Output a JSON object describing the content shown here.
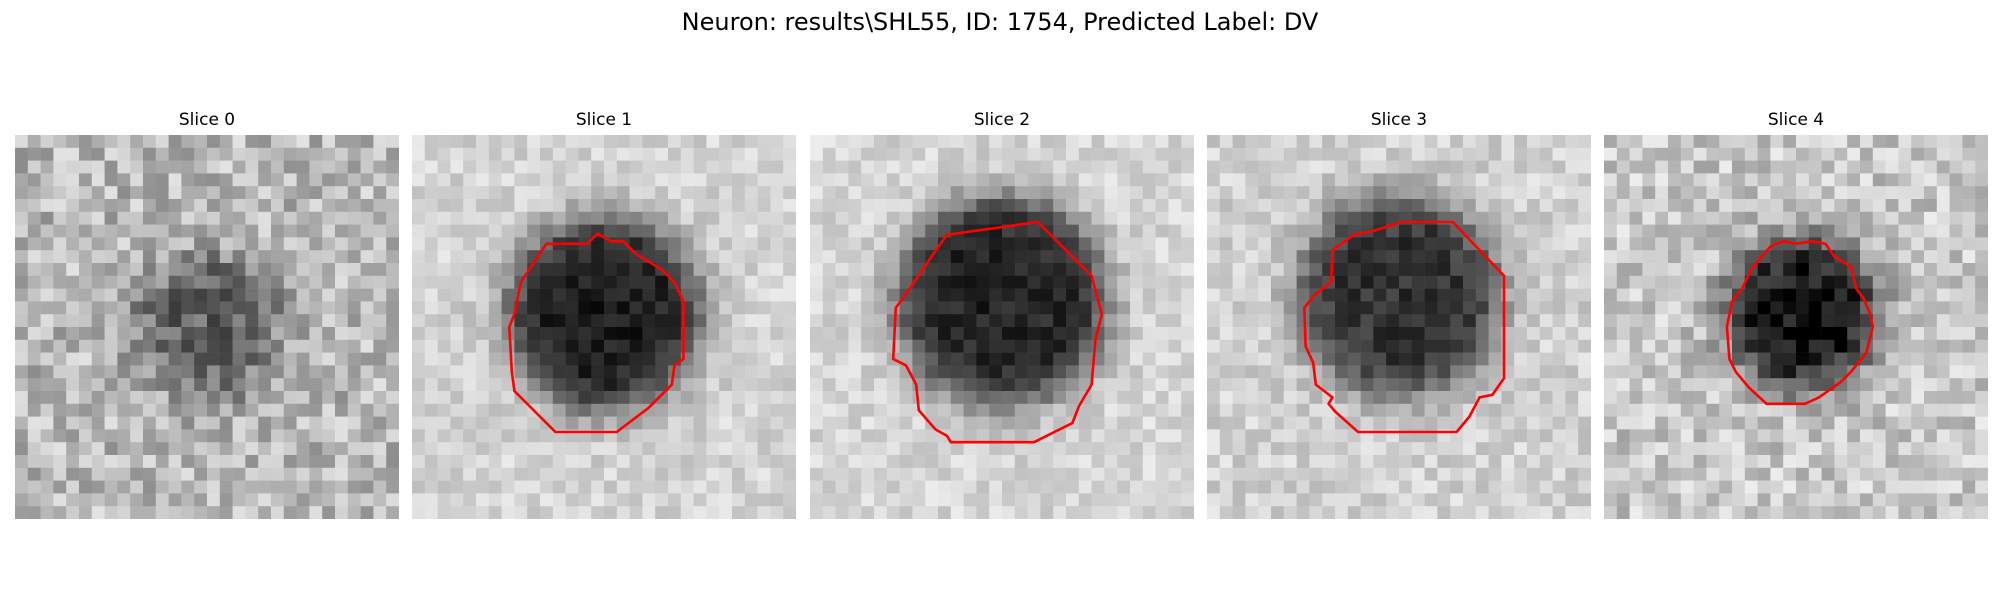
{
  "figure": {
    "title": "Neuron: results\\SHL55, ID: 1754, Predicted Label: DV"
  },
  "slices": [
    {
      "title": "Slice 0",
      "has_contour": false,
      "contour_color": "#ff0000"
    },
    {
      "title": "Slice 1",
      "has_contour": true,
      "contour_color": "#ff0000"
    },
    {
      "title": "Slice 2",
      "has_contour": true,
      "contour_color": "#ff0000"
    },
    {
      "title": "Slice 3",
      "has_contour": true,
      "contour_color": "#ff0000"
    },
    {
      "title": "Slice 4",
      "has_contour": true,
      "contour_color": "#ff0000"
    }
  ],
  "colormap": "gray"
}
